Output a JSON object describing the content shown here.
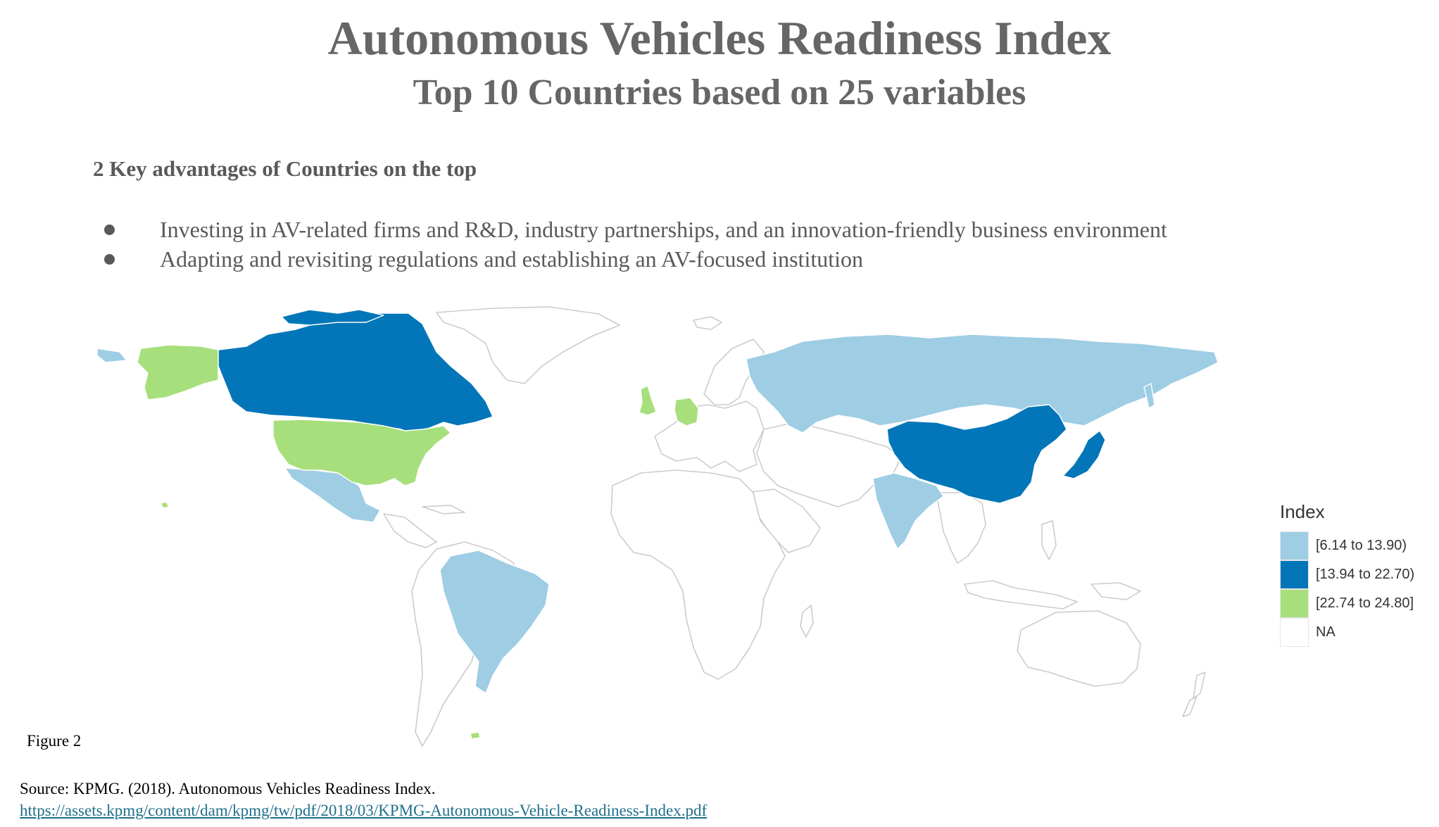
{
  "header": {
    "title": "Autonomous Vehicles Readiness Index",
    "subtitle": "Top 10 Countries based on 25 variables"
  },
  "advantages": {
    "heading": "2 Key advantages of Countries on the top",
    "items": [
      "Investing in AV-related firms and R&D, industry partnerships, and an innovation-friendly business environment",
      "Adapting and revisiting regulations and establishing an AV-focused institution"
    ]
  },
  "map": {
    "countries_by_class": {
      "[6.14 to 13.90)": [
        "Russia",
        "Mexico",
        "Brazil",
        "India"
      ],
      "[13.94 to 22.70)": [
        "Canada",
        "China",
        "Japan"
      ],
      "[22.74 to 24.80]": [
        "United States",
        "United Kingdom",
        "Germany"
      ]
    }
  },
  "legend": {
    "title": "Index",
    "items": [
      {
        "label": "[6.14 to 13.90)",
        "color": "#9ecde4"
      },
      {
        "label": "[13.94 to 22.70)",
        "color": "#0276b8"
      },
      {
        "label": "[22.74 to 24.80]",
        "color": "#a6df7c"
      },
      {
        "label": "NA",
        "color": "#ffffff"
      }
    ]
  },
  "colors": {
    "low": "#9ecde4",
    "mid": "#0276b8",
    "high": "#a6df7c",
    "na": "#ffffff",
    "border": "#cccccc"
  },
  "figure_label": "Figure 2",
  "source": {
    "text": "Source: KPMG. (2018). Autonomous Vehicles Readiness Index.",
    "link": "https://assets.kpmg/content/dam/kpmg/tw/pdf/2018/03/KPMG-Autonomous-Vehicle-Readiness-Index.pdf"
  }
}
